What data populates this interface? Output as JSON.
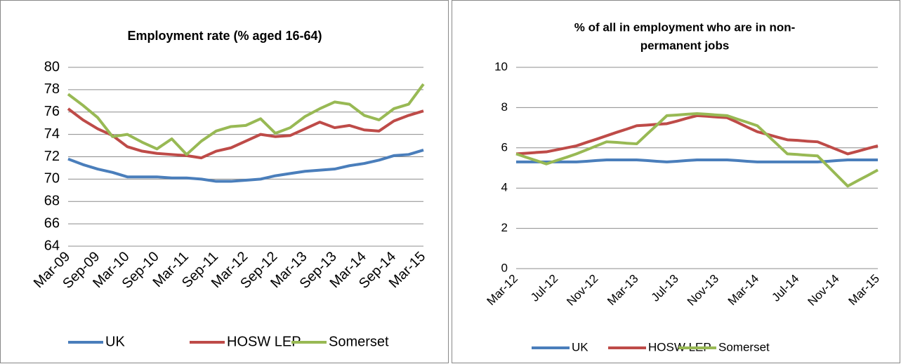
{
  "chart_data": [
    {
      "type": "line",
      "title": [
        "Employment rate (% aged 16-64)"
      ],
      "categories": [
        "Mar-09",
        null,
        "Sep-09",
        null,
        "Mar-10",
        null,
        "Sep-10",
        null,
        "Mar-11",
        null,
        "Sep-11",
        null,
        "Mar-12",
        null,
        "Sep-12",
        null,
        "Mar-13",
        null,
        "Sep-13",
        null,
        "Mar-14",
        null,
        "Sep-14",
        null,
        "Mar-15"
      ],
      "series": [
        {
          "name": "UK",
          "color": "#4a7ebb",
          "values": [
            71.8,
            71.3,
            70.9,
            70.6,
            70.2,
            70.2,
            70.2,
            70.1,
            70.1,
            70.0,
            69.8,
            69.8,
            69.9,
            70.0,
            70.3,
            70.5,
            70.7,
            70.8,
            70.9,
            71.2,
            71.4,
            71.7,
            72.1,
            72.2,
            72.6
          ]
        },
        {
          "name": "HOSW LEP",
          "color": "#be4b48",
          "values": [
            76.3,
            75.3,
            74.5,
            73.9,
            72.9,
            72.5,
            72.3,
            72.2,
            72.1,
            71.9,
            72.5,
            72.8,
            73.4,
            74.0,
            73.8,
            73.9,
            74.5,
            75.1,
            74.6,
            74.8,
            74.4,
            74.3,
            75.2,
            75.7,
            76.1
          ]
        },
        {
          "name": "Somerset",
          "color": "#98b954",
          "values": [
            77.6,
            76.6,
            75.5,
            73.8,
            74.0,
            73.3,
            72.7,
            73.6,
            72.2,
            73.4,
            74.3,
            74.7,
            74.8,
            75.4,
            74.1,
            74.6,
            75.6,
            76.3,
            76.9,
            76.7,
            75.7,
            75.3,
            76.3,
            76.7,
            78.5
          ]
        }
      ],
      "ylim": [
        64,
        80
      ],
      "yticks": [
        64,
        66,
        68,
        70,
        72,
        74,
        76,
        78,
        80
      ],
      "grid": true,
      "legend": "bottom"
    },
    {
      "type": "line",
      "title": [
        "% of all in employment who are in non-",
        "permanent jobs"
      ],
      "categories": [
        "Mar-12",
        null,
        null,
        null,
        "Jul-12",
        null,
        null,
        null,
        "Nov-12",
        null,
        null,
        null,
        "Mar-13",
        null,
        null,
        null,
        "Jul-13",
        null,
        null,
        null,
        "Nov-13",
        null,
        null,
        null,
        "Mar-14",
        null,
        null,
        null,
        "Jul-14",
        null,
        null,
        null,
        "Nov-14",
        null,
        null,
        null,
        "Mar-15"
      ],
      "series": [
        {
          "name": "UK",
          "color": "#4a7ebb",
          "values": [
            5.3,
            5.3,
            5.3,
            5.3,
            5.3,
            5.3,
            5.3,
            5.33,
            5.37,
            5.4,
            5.4,
            5.4,
            5.4,
            5.37,
            5.33,
            5.3,
            5.33,
            5.37,
            5.4,
            5.4,
            5.4,
            5.4,
            5.37,
            5.33,
            5.3,
            5.3,
            5.3,
            5.3,
            5.3,
            5.3,
            5.3,
            5.33,
            5.37,
            5.4,
            5.4,
            5.4,
            5.4
          ]
        },
        {
          "name": "HOSW LEP",
          "color": "#be4b48",
          "values": [
            5.7,
            5.73,
            5.77,
            5.8,
            5.9,
            6.0,
            6.1,
            6.27,
            6.43,
            6.6,
            6.77,
            6.93,
            7.1,
            7.13,
            7.17,
            7.2,
            7.33,
            7.47,
            7.6,
            7.57,
            7.53,
            7.5,
            7.27,
            7.03,
            6.8,
            6.67,
            6.53,
            6.4,
            6.37,
            6.33,
            6.3,
            6.1,
            5.9,
            5.7,
            5.83,
            5.97,
            6.1
          ]
        },
        {
          "name": "Somerset",
          "color": "#98b954",
          "values": [
            5.7,
            5.53,
            5.37,
            5.2,
            5.37,
            5.53,
            5.7,
            5.9,
            6.1,
            6.3,
            6.27,
            6.23,
            6.2,
            6.67,
            7.13,
            7.6,
            7.63,
            7.67,
            7.7,
            7.67,
            7.63,
            7.6,
            7.43,
            7.27,
            7.1,
            6.63,
            6.17,
            5.7,
            5.67,
            5.63,
            5.6,
            5.1,
            4.6,
            4.1,
            4.37,
            4.63,
            4.9
          ]
        }
      ],
      "ylim": [
        0,
        10
      ],
      "yticks": [
        0,
        2,
        4,
        6,
        8,
        10
      ],
      "grid": true,
      "legend": "bottom"
    }
  ]
}
